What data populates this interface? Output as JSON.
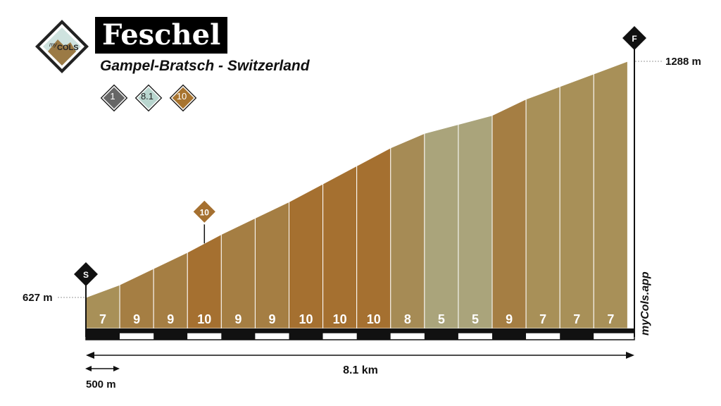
{
  "title": "Feschel",
  "subtitle": "Gampel-Bratsch - Switzerland",
  "logo": {
    "top": "my",
    "main": "COLS"
  },
  "badges": [
    {
      "label": "1",
      "color": "#666666",
      "text_color": "#ffffff"
    },
    {
      "label": "8.1",
      "color": "#b9d6cf",
      "text_color": "#222222"
    },
    {
      "label": "10",
      "color": "#a8742f",
      "text_color": "#ffffff"
    }
  ],
  "chart_data": {
    "type": "area",
    "start_elevation_label": "627 m",
    "end_elevation_label": "1288 m",
    "start_marker": "S",
    "finish_marker": "F",
    "max_gradient_marker": "10",
    "distance_label": "8.1 km",
    "scale_label": "500 m",
    "watermark": "myCols.app",
    "distance_km": 8.1,
    "elevation_range_m": [
      627,
      1288
    ],
    "segment_length_m": 500,
    "segments": [
      7,
      9,
      9,
      10,
      9,
      9,
      10,
      10,
      10,
      8,
      5,
      5,
      9,
      7,
      7,
      7
    ],
    "max_gradient_segment": 4,
    "colors": {
      "5": "#aaa47b",
      "7": "#a89058",
      "8": "#a68b55",
      "9": "#a57e43",
      "10": "#a57030"
    }
  }
}
